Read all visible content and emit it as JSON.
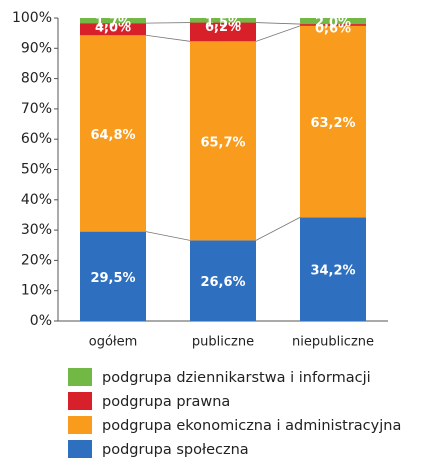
{
  "chart_data": {
    "type": "stacked_bar",
    "categories": [
      "ogółem",
      "publiczne",
      "niepubliczne"
    ],
    "series": [
      {
        "name": "podgrupa społeczna",
        "color": "#2e6fc0",
        "values": [
          29.5,
          26.6,
          34.2
        ],
        "value_labels": [
          "29,5%",
          "26,6%",
          "34,2%"
        ]
      },
      {
        "name": "podgrupa ekonomiczna i administracyjna",
        "color": "#f99b1c",
        "values": [
          64.8,
          65.7,
          63.2
        ],
        "value_labels": [
          "64,8%",
          "65,7%",
          "63,2%"
        ]
      },
      {
        "name": "podgrupa prawna",
        "color": "#d7202a",
        "values": [
          4.0,
          6.2,
          0.6
        ],
        "value_labels": [
          "4,0%",
          "6,2%",
          "0,6%"
        ]
      },
      {
        "name": "podgrupa dziennikarstwa i informacji",
        "color": "#72b844",
        "values": [
          1.7,
          1.5,
          2.0
        ],
        "value_labels": [
          "1,7%",
          "1,5%",
          "2,0%"
        ]
      }
    ],
    "ylim": [
      0,
      100
    ],
    "yticks": [
      {
        "value": 0,
        "label": "0%"
      },
      {
        "value": 10,
        "label": "10%"
      },
      {
        "value": 20,
        "label": "20%"
      },
      {
        "value": 30,
        "label": "30%"
      },
      {
        "value": 40,
        "label": "40%"
      },
      {
        "value": 50,
        "label": "50%"
      },
      {
        "value": 60,
        "label": "60%"
      },
      {
        "value": 70,
        "label": "70%"
      },
      {
        "value": 80,
        "label": "80%"
      },
      {
        "value": 90,
        "label": "90%"
      },
      {
        "value": 100,
        "label": "100%"
      }
    ],
    "legend": "bottom"
  }
}
